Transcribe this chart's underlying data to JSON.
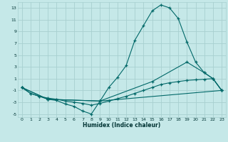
{
  "title": "",
  "xlabel": "Humidex (Indice chaleur)",
  "bg_color": "#c5e8e8",
  "grid_color": "#a8d0d0",
  "line_color": "#006868",
  "xlim": [
    -0.5,
    23.5
  ],
  "ylim": [
    -5.5,
    14.0
  ],
  "xticks": [
    0,
    1,
    2,
    3,
    4,
    5,
    6,
    7,
    8,
    9,
    10,
    11,
    12,
    13,
    14,
    15,
    16,
    17,
    18,
    19,
    20,
    21,
    22,
    23
  ],
  "yticks": [
    -5,
    -3,
    -1,
    1,
    3,
    5,
    7,
    9,
    11,
    13
  ],
  "line1_x": [
    0,
    1,
    2,
    3,
    4,
    5,
    6,
    7,
    8,
    9,
    10,
    11,
    12,
    13,
    14,
    15,
    16,
    17,
    18,
    19,
    20,
    21,
    22,
    23
  ],
  "line1_y": [
    -0.5,
    -1.5,
    -2.0,
    -2.5,
    -2.7,
    -3.3,
    -3.7,
    -4.5,
    -5.0,
    -2.8,
    -0.5,
    1.2,
    3.2,
    7.5,
    10.0,
    12.5,
    13.5,
    13.0,
    11.2,
    7.2,
    3.8,
    2.0,
    1.0,
    -1.0
  ],
  "line2_x": [
    0,
    1,
    2,
    3,
    4,
    5,
    6,
    7,
    8,
    9,
    10,
    11,
    12,
    13,
    14,
    15,
    16,
    17,
    18,
    19,
    20,
    21,
    22,
    23
  ],
  "line2_y": [
    -0.5,
    -1.5,
    -2.0,
    -2.3,
    -2.5,
    -2.8,
    -3.0,
    -3.2,
    -3.5,
    -3.2,
    -2.8,
    -2.4,
    -2.0,
    -1.5,
    -1.0,
    -0.5,
    0.0,
    0.3,
    0.5,
    0.7,
    0.8,
    0.9,
    1.0,
    -1.0
  ],
  "line3_x": [
    0,
    3,
    9,
    15,
    19,
    21,
    22,
    23
  ],
  "line3_y": [
    -0.5,
    -2.5,
    -2.8,
    0.5,
    3.8,
    2.0,
    1.0,
    -1.0
  ],
  "line4_x": [
    0,
    3,
    9,
    23
  ],
  "line4_y": [
    -0.5,
    -2.5,
    -2.8,
    -1.0
  ]
}
